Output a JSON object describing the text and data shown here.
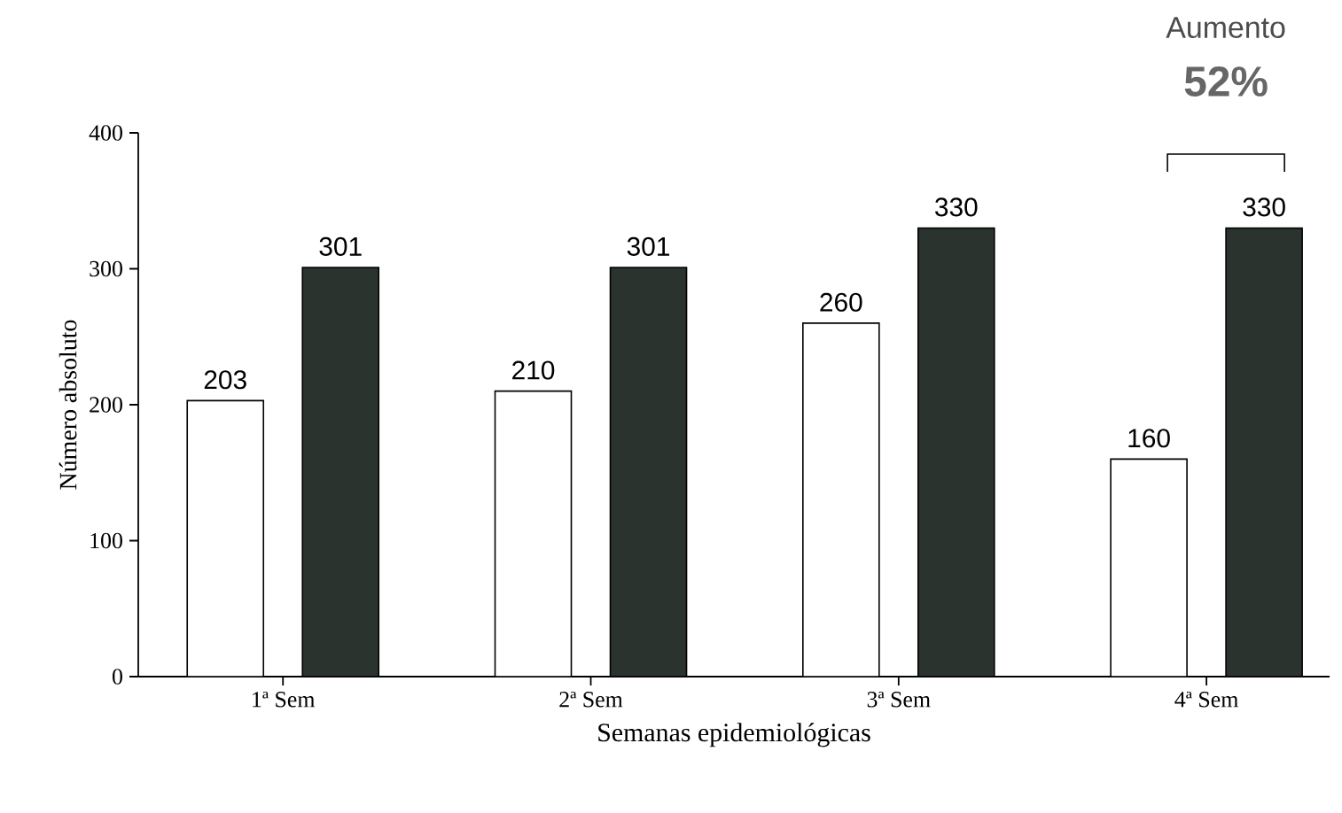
{
  "chart_data": {
    "type": "bar",
    "categories": [
      "1ª Sem",
      "2ª Sem",
      "3ª Sem",
      "4ª Sem"
    ],
    "series": [
      {
        "color": "#ffffff",
        "values": [
          203,
          210,
          260,
          160
        ]
      },
      {
        "color": "#2b332e",
        "values": [
          301,
          301,
          330,
          330
        ]
      }
    ],
    "xlabel": "Semanas epidemiológicas",
    "ylabel": "Número absoluto",
    "ylim": [
      0,
      400
    ],
    "yticks": [
      0,
      100,
      200,
      300,
      400
    ],
    "data_labels": true,
    "annotations": [
      "Aumento",
      "52%"
    ]
  }
}
